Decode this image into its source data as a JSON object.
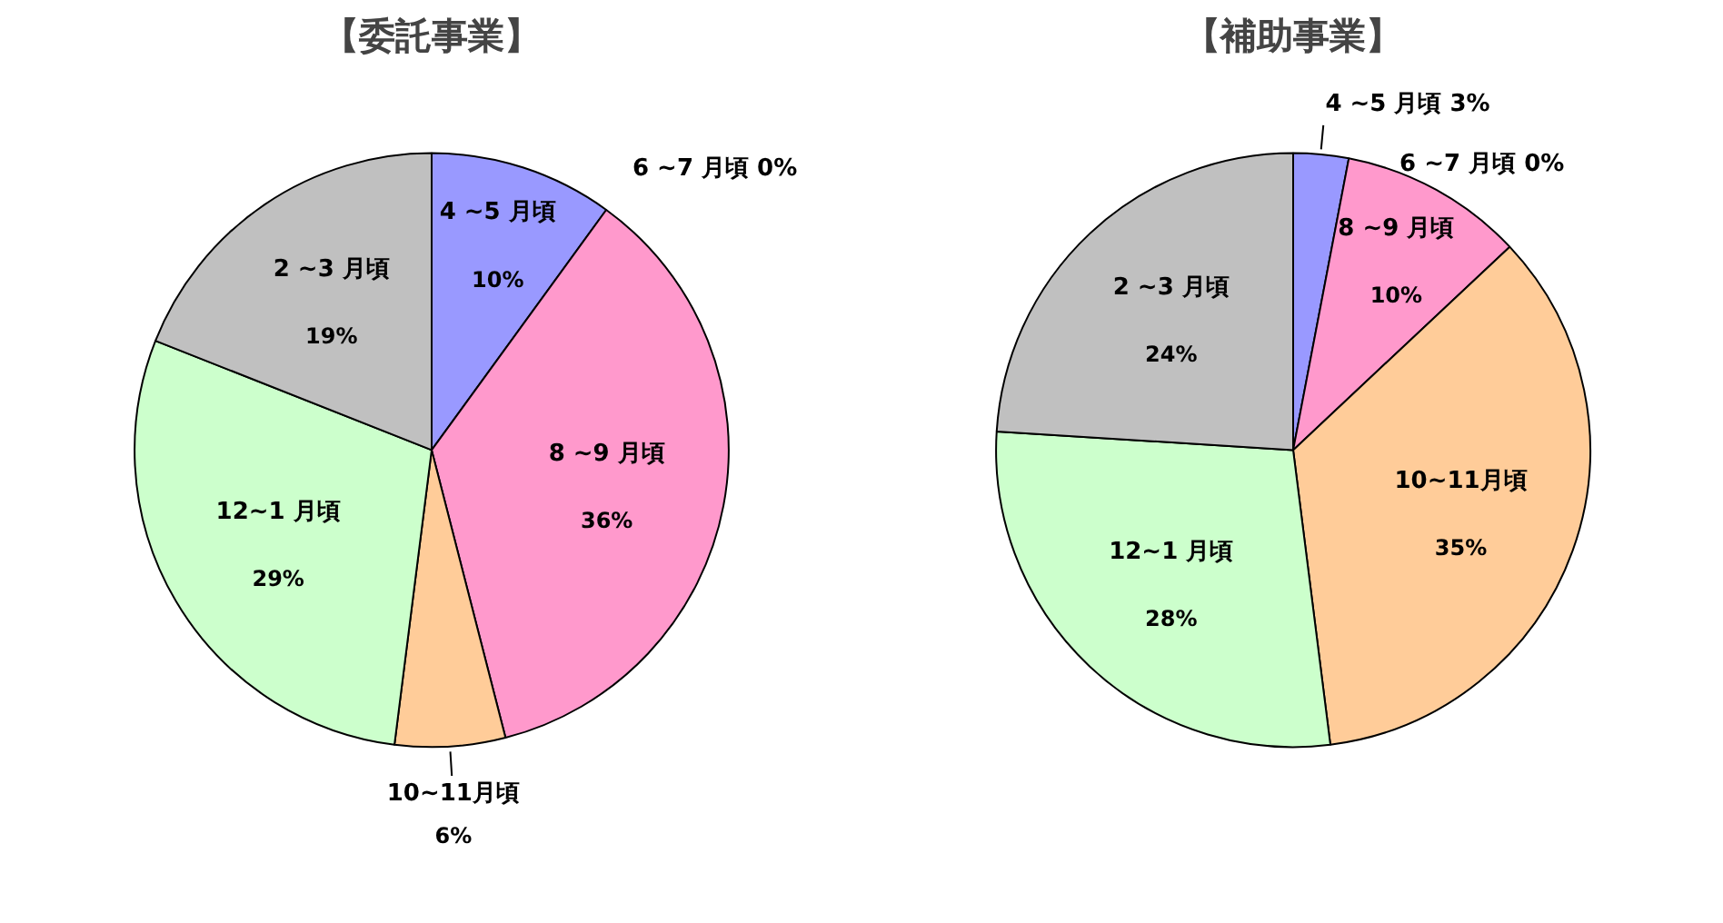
{
  "chart_data": [
    {
      "type": "pie",
      "title": "【委託事業】",
      "categories": [
        "4 ~5 月頃",
        "6 ~7 月頃",
        "8 ~9 月頃",
        "10~11月頃",
        "12~1 月頃",
        "2 ~3 月頃"
      ],
      "values": [
        10,
        0,
        36,
        6,
        29,
        19
      ],
      "colors": [
        "#9999ff",
        "#993366",
        "#ff99cc",
        "#ffcc99",
        "#ccffcc",
        "#c0c0c0"
      ],
      "value_labels": [
        "10%",
        "0%",
        "36%",
        "6%",
        "29%",
        "19%"
      ]
    },
    {
      "type": "pie",
      "title": "【補助事業】",
      "categories": [
        "4 ~5 月頃",
        "6 ~7 月頃",
        "8 ~9 月頃",
        "10~11月頃",
        "12~1 月頃",
        "2 ~3 月頃"
      ],
      "values": [
        3,
        0,
        10,
        35,
        28,
        24
      ],
      "colors": [
        "#9999ff",
        "#993366",
        "#ff99cc",
        "#ffcc99",
        "#ccffcc",
        "#c0c0c0"
      ],
      "value_labels": [
        "3%",
        "0%",
        "10%",
        "35%",
        "28%",
        "24%"
      ]
    }
  ]
}
